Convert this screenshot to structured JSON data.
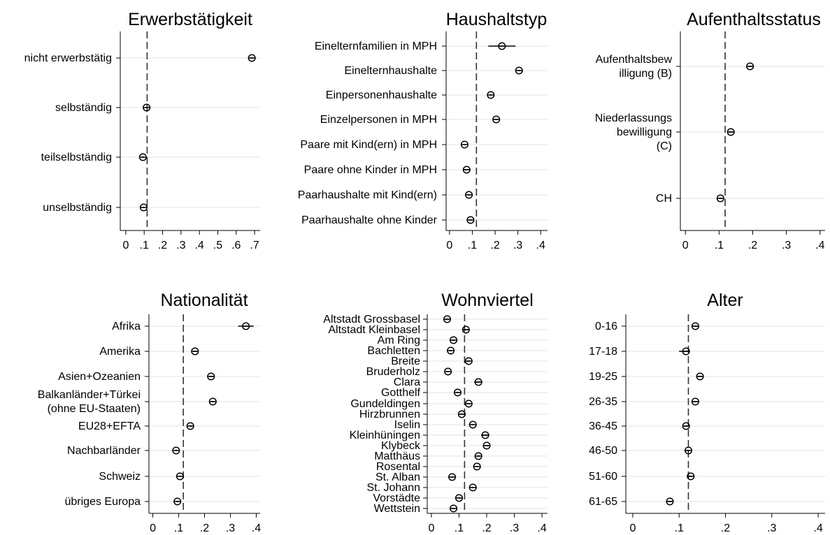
{
  "chart_data": [
    {
      "type": "scatter",
      "title": "Erwerbstätigkeit",
      "reference_line": 0.116,
      "xlim": [
        -0.03,
        0.73
      ],
      "ticks": [
        "0",
        ".1",
        ".2",
        ".3",
        ".4",
        ".5",
        ".6",
        ".7"
      ],
      "tick_values": [
        0,
        0.1,
        0.2,
        0.3,
        0.4,
        0.5,
        0.6,
        0.7
      ],
      "categories": [
        {
          "label": "nicht erwerbstätig",
          "value": 0.685,
          "ci": [
            0.677,
            0.693
          ]
        },
        {
          "label": "selbständig",
          "value": 0.113,
          "ci": [
            0.108,
            0.118
          ]
        },
        {
          "label": "teilselbständig",
          "value": 0.093,
          "ci": [
            0.086,
            0.1
          ]
        },
        {
          "label": "unselbständig",
          "value": 0.097,
          "ci": [
            0.092,
            0.102
          ]
        }
      ]
    },
    {
      "type": "scatter",
      "title": "Haushaltstyp",
      "reference_line": 0.118,
      "xlim": [
        -0.015,
        0.43
      ],
      "ticks": [
        "0",
        ".1",
        ".2",
        ".3",
        ".4"
      ],
      "tick_values": [
        0,
        0.1,
        0.2,
        0.3,
        0.4
      ],
      "categories": [
        {
          "label": "Einelternfamilien in MPH",
          "value": 0.23,
          "ci": [
            0.17,
            0.29
          ]
        },
        {
          "label": "Einelternhaushalte",
          "value": 0.305,
          "ci": [
            0.298,
            0.312
          ]
        },
        {
          "label": "Einpersonenhaushalte",
          "value": 0.181,
          "ci": [
            0.176,
            0.186
          ]
        },
        {
          "label": "Einzelpersonen in MPH",
          "value": 0.205,
          "ci": [
            0.198,
            0.212
          ]
        },
        {
          "label": "Paare mit Kind(ern) in MPH",
          "value": 0.066,
          "ci": [
            0.06,
            0.072
          ]
        },
        {
          "label": "Paare ohne Kinder in MPH",
          "value": 0.075,
          "ci": [
            0.063,
            0.087
          ]
        },
        {
          "label": "Paarhaushalte mit Kind(ern)",
          "value": 0.085,
          "ci": [
            0.079,
            0.091
          ]
        },
        {
          "label": "Paarhaushalte ohne Kinder",
          "value": 0.092,
          "ci": [
            0.087,
            0.097
          ]
        }
      ]
    },
    {
      "type": "scatter",
      "title": "Aufenthaltsstatus",
      "reference_line": 0.118,
      "xlim": [
        -0.015,
        0.415
      ],
      "ticks": [
        "0",
        ".1",
        ".2",
        ".3",
        ".4"
      ],
      "tick_values": [
        0,
        0.1,
        0.2,
        0.3,
        0.4
      ],
      "categories": [
        {
          "label_lines": [
            "Aufenthaltsbew",
            "illigung (B)"
          ],
          "value": 0.192,
          "ci": [
            0.186,
            0.198
          ]
        },
        {
          "label_lines": [
            "Niederlassungs",
            "bewilligung",
            "(C)"
          ],
          "value": 0.135,
          "ci": [
            0.129,
            0.141
          ]
        },
        {
          "label_lines": [
            "CH"
          ],
          "value": 0.104,
          "ci": [
            0.1,
            0.108
          ]
        }
      ]
    },
    {
      "type": "scatter",
      "title": "Nationalität",
      "reference_line": 0.118,
      "xlim": [
        -0.015,
        0.415
      ],
      "ticks": [
        "0",
        ".1",
        ".2",
        ".3",
        ".4"
      ],
      "tick_values": [
        0,
        0.1,
        0.2,
        0.3,
        0.4
      ],
      "categories": [
        {
          "label_lines": [
            "Afrika"
          ],
          "value": 0.36,
          "ci": [
            0.33,
            0.39
          ]
        },
        {
          "label_lines": [
            "Amerika"
          ],
          "value": 0.163,
          "ci": [
            0.156,
            0.17
          ]
        },
        {
          "label_lines": [
            "Asien+Ozeanien"
          ],
          "value": 0.225,
          "ci": [
            0.218,
            0.232
          ]
        },
        {
          "label_lines": [
            "Balkanländer+Türkei",
            "(ohne EU-Staaten)"
          ],
          "value": 0.232,
          "ci": [
            0.226,
            0.238
          ]
        },
        {
          "label_lines": [
            "EU28+EFTA"
          ],
          "value": 0.145,
          "ci": [
            0.139,
            0.151
          ]
        },
        {
          "label_lines": [
            "Nachbarländer"
          ],
          "value": 0.09,
          "ci": [
            0.085,
            0.095
          ]
        },
        {
          "label_lines": [
            "Schweiz"
          ],
          "value": 0.105,
          "ci": [
            0.101,
            0.109
          ]
        },
        {
          "label_lines": [
            "übriges Europa"
          ],
          "value": 0.095,
          "ci": [
            0.089,
            0.101
          ]
        }
      ]
    },
    {
      "type": "scatter",
      "title": "Wohnviertel",
      "reference_line": 0.12,
      "xlim": [
        -0.015,
        0.42
      ],
      "ticks": [
        "0",
        ".1",
        ".2",
        ".3",
        ".4"
      ],
      "tick_values": [
        0,
        0.1,
        0.2,
        0.3,
        0.4
      ],
      "categories": [
        {
          "label": "Altstadt Grossbasel",
          "value": 0.057,
          "ci": [
            0.05,
            0.064
          ]
        },
        {
          "label": "Altstadt Kleinbasel",
          "value": 0.125,
          "ci": [
            0.112,
            0.138
          ]
        },
        {
          "label": "Am Ring",
          "value": 0.08,
          "ci": [
            0.075,
            0.085
          ]
        },
        {
          "label": "Bachletten",
          "value": 0.07,
          "ci": [
            0.065,
            0.075
          ]
        },
        {
          "label": "Breite",
          "value": 0.135,
          "ci": [
            0.13,
            0.14
          ]
        },
        {
          "label": "Bruderholz",
          "value": 0.06,
          "ci": [
            0.055,
            0.065
          ]
        },
        {
          "label": "Clara",
          "value": 0.17,
          "ci": [
            0.155,
            0.185
          ]
        },
        {
          "label": "Gotthelf",
          "value": 0.095,
          "ci": [
            0.09,
            0.1
          ]
        },
        {
          "label": "Gundeldingen",
          "value": 0.135,
          "ci": [
            0.13,
            0.14
          ]
        },
        {
          "label": "Hirzbrunnen",
          "value": 0.11,
          "ci": [
            0.105,
            0.115
          ]
        },
        {
          "label": "Iselin",
          "value": 0.15,
          "ci": [
            0.145,
            0.155
          ]
        },
        {
          "label": "Kleinhüningen",
          "value": 0.195,
          "ci": [
            0.18,
            0.21
          ]
        },
        {
          "label": "Klybeck",
          "value": 0.2,
          "ci": [
            0.193,
            0.207
          ]
        },
        {
          "label": "Matthäus",
          "value": 0.17,
          "ci": [
            0.165,
            0.175
          ]
        },
        {
          "label": "Rosental",
          "value": 0.165,
          "ci": [
            0.16,
            0.17
          ]
        },
        {
          "label": "St. Alban",
          "value": 0.075,
          "ci": [
            0.07,
            0.08
          ]
        },
        {
          "label": "St. Johann",
          "value": 0.15,
          "ci": [
            0.145,
            0.155
          ]
        },
        {
          "label": "Vorstädte",
          "value": 0.1,
          "ci": [
            0.095,
            0.105
          ]
        },
        {
          "label": "Wettstein",
          "value": 0.08,
          "ci": [
            0.075,
            0.085
          ]
        }
      ]
    },
    {
      "type": "scatter",
      "title": "Alter",
      "reference_line": 0.12,
      "xlim": [
        -0.015,
        0.415
      ],
      "ticks": [
        "0",
        ".1",
        ".2",
        ".3",
        ".4"
      ],
      "tick_values": [
        0,
        0.1,
        0.2,
        0.3,
        0.4
      ],
      "categories": [
        {
          "label": "0-16",
          "value": 0.135,
          "ci": [
            0.13,
            0.14
          ]
        },
        {
          "label": "17-18",
          "value": 0.115,
          "ci": [
            0.1,
            0.12
          ]
        },
        {
          "label": "19-25",
          "value": 0.145,
          "ci": [
            0.14,
            0.15
          ]
        },
        {
          "label": "26-35",
          "value": 0.135,
          "ci": [
            0.13,
            0.14
          ]
        },
        {
          "label": "36-45",
          "value": 0.115,
          "ci": [
            0.11,
            0.12
          ]
        },
        {
          "label": "46-50",
          "value": 0.12,
          "ci": [
            0.116,
            0.124
          ]
        },
        {
          "label": "51-60",
          "value": 0.125,
          "ci": [
            0.121,
            0.129
          ]
        },
        {
          "label": "61-65",
          "value": 0.08,
          "ci": [
            0.075,
            0.085
          ]
        }
      ]
    }
  ]
}
